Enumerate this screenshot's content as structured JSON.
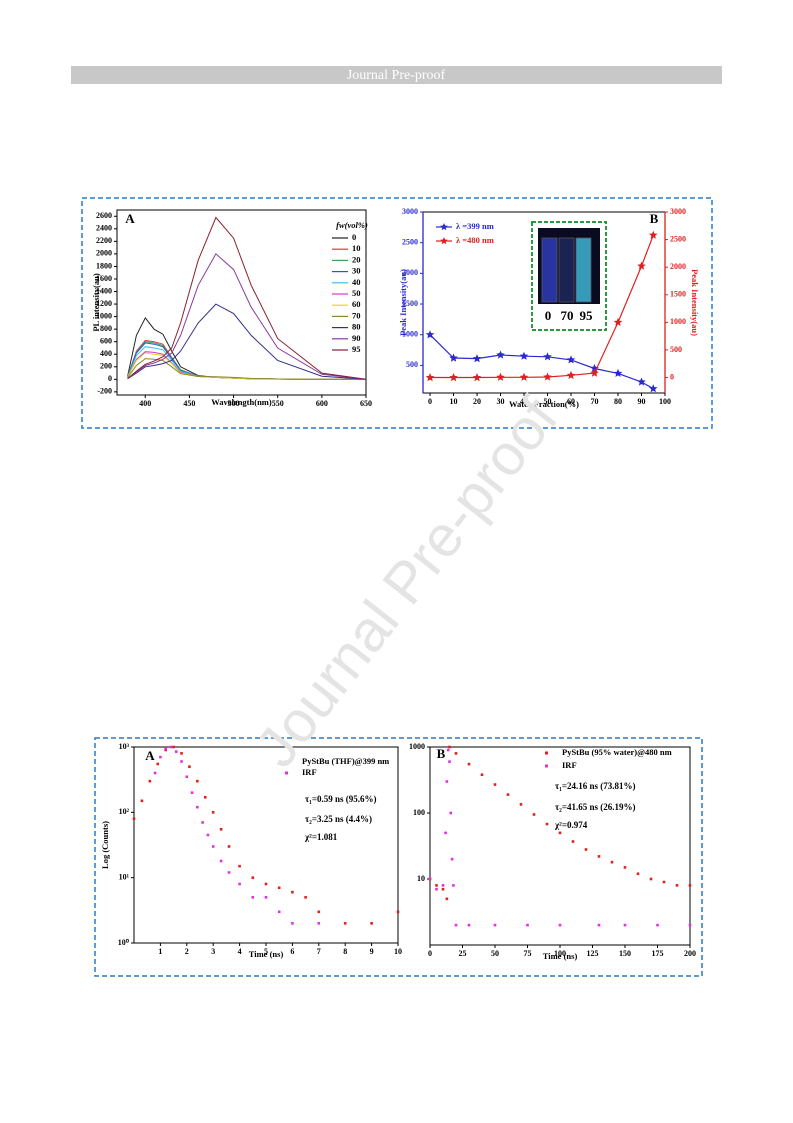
{
  "header": {
    "text": "Journal Pre-proof"
  },
  "watermark": "Journal Pre-proof",
  "chart_data": [
    {
      "type": "line",
      "annotations": [
        "A"
      ],
      "legend_title": "fw(vol%)",
      "legend": "right",
      "xlabel": "Wavelength(nm)",
      "ylabel": "PL intensity(au)",
      "x": [
        380,
        390,
        400,
        410,
        420,
        430,
        440,
        460,
        480,
        500,
        520,
        550,
        600,
        650
      ],
      "xlim": [
        368,
        650
      ],
      "xticks": [
        400,
        450,
        500,
        550,
        600,
        650
      ],
      "ylim": [
        -250,
        2700
      ],
      "yticks": [
        -200,
        0,
        200,
        400,
        600,
        800,
        1000,
        1200,
        1400,
        1600,
        1800,
        2000,
        2200,
        2400,
        2600
      ],
      "series": [
        {
          "name": "0",
          "color": "#222222",
          "values": [
            50,
            700,
            980,
            800,
            720,
            450,
            200,
            60,
            30,
            20,
            10,
            5,
            0,
            0
          ]
        },
        {
          "name": "10",
          "color": "#e8343a",
          "values": [
            40,
            450,
            620,
            600,
            560,
            350,
            150,
            50,
            30,
            20,
            10,
            5,
            0,
            0
          ]
        },
        {
          "name": "20",
          "color": "#2fa84f",
          "values": [
            40,
            430,
            600,
            580,
            540,
            340,
            150,
            50,
            30,
            20,
            10,
            5,
            0,
            0
          ]
        },
        {
          "name": "30",
          "color": "#3050d8",
          "values": [
            40,
            420,
            580,
            560,
            520,
            330,
            140,
            50,
            30,
            20,
            10,
            5,
            0,
            0
          ]
        },
        {
          "name": "40",
          "color": "#35c6e0",
          "values": [
            35,
            380,
            520,
            500,
            470,
            300,
            130,
            50,
            30,
            20,
            10,
            5,
            0,
            0
          ]
        },
        {
          "name": "50",
          "color": "#d838d0",
          "values": [
            30,
            320,
            440,
            430,
            400,
            260,
            110,
            45,
            30,
            20,
            10,
            5,
            0,
            0
          ]
        },
        {
          "name": "60",
          "color": "#e2d820",
          "values": [
            30,
            300,
            420,
            400,
            380,
            250,
            100,
            45,
            30,
            20,
            10,
            5,
            0,
            0
          ]
        },
        {
          "name": "70",
          "color": "#8a8a20",
          "values": [
            25,
            220,
            330,
            320,
            300,
            200,
            90,
            45,
            40,
            30,
            15,
            5,
            0,
            0
          ]
        },
        {
          "name": "80",
          "color": "#30308a",
          "values": [
            10,
            100,
            200,
            220,
            250,
            300,
            450,
            900,
            1200,
            1050,
            700,
            300,
            50,
            0
          ]
        },
        {
          "name": "90",
          "color": "#8a3aa0",
          "values": [
            10,
            120,
            220,
            260,
            320,
            420,
            700,
            1500,
            2000,
            1750,
            1150,
            500,
            80,
            0
          ]
        },
        {
          "name": "95",
          "color": "#8a2030",
          "values": [
            10,
            130,
            240,
            290,
            360,
            500,
            900,
            1900,
            2580,
            2250,
            1500,
            650,
            100,
            0
          ]
        }
      ]
    },
    {
      "type": "line",
      "annotations": [
        "B"
      ],
      "legend": "upper left",
      "markers": "star",
      "xlabel": "Water Fraction(%)",
      "ylabel": "Peak Intensity(au)",
      "y2label": "Peak Intensity(au)",
      "inset_labels": [
        "0",
        "70",
        "95"
      ],
      "x": [
        0,
        10,
        20,
        30,
        40,
        50,
        60,
        70,
        80,
        90,
        95
      ],
      "xlim": [
        -3,
        100
      ],
      "xticks": [
        0,
        10,
        20,
        30,
        40,
        50,
        60,
        70,
        80,
        90,
        100
      ],
      "ylim": [
        50,
        3000
      ],
      "yticks": [
        500,
        1000,
        1500,
        2000,
        2500,
        3000
      ],
      "y2lim": [
        -280,
        3000
      ],
      "y2ticks": [
        0,
        500,
        1000,
        1500,
        2000,
        2500,
        3000
      ],
      "series": [
        {
          "name": "λ =399 nm",
          "color": "#2a2ad0",
          "values": [
            1000,
            620,
            610,
            670,
            650,
            640,
            590,
            450,
            370,
            230,
            120
          ]
        },
        {
          "name": "λ =480 nm",
          "color": "#e02020",
          "axis": "y2",
          "values": [
            0,
            0,
            0,
            5,
            5,
            10,
            40,
            80,
            1000,
            2020,
            2580
          ]
        }
      ]
    },
    {
      "type": "scatter",
      "log_y": true,
      "legend": "upper right",
      "annotations": [
        "A",
        "τ₁=0.59 ns (95.6%)",
        "τ₂=3.25 ns (4.4%)",
        "χ²=1.081"
      ],
      "xlabel": "Time (ns)",
      "ylabel": "Log (Counts)",
      "xlim": [
        0,
        10
      ],
      "xticks": [
        1,
        2,
        3,
        4,
        5,
        6,
        7,
        8,
        9,
        10
      ],
      "ylim": [
        1,
        1000
      ],
      "yticks": [
        {
          "value": 1,
          "label": "10⁰"
        },
        {
          "value": 10,
          "label": "10¹"
        },
        {
          "value": 100,
          "label": "10²"
        },
        {
          "value": 1000,
          "label": "10³"
        }
      ],
      "series": [
        {
          "name": "PyStBu (THF)@399 nm",
          "color": "#e02020",
          "x": [
            0,
            0.3,
            0.6,
            0.9,
            1.2,
            1.5,
            1.8,
            2.1,
            2.4,
            2.7,
            3.0,
            3.3,
            3.6,
            4.0,
            4.5,
            5,
            5.5,
            6,
            6.5,
            7,
            8,
            9,
            10
          ],
          "values": [
            80,
            150,
            300,
            550,
            900,
            1000,
            800,
            500,
            300,
            170,
            100,
            55,
            30,
            15,
            10,
            8,
            7,
            6,
            5,
            3,
            2,
            2,
            3
          ]
        },
        {
          "name": "IRF",
          "color": "#e030e0",
          "x": [
            0.8,
            1.0,
            1.2,
            1.4,
            1.6,
            1.8,
            2.0,
            2.2,
            2.4,
            2.6,
            2.8,
            3.0,
            3.3,
            3.6,
            4,
            4.5,
            5,
            5.5,
            6,
            7
          ],
          "values": [
            400,
            700,
            950,
            1000,
            850,
            600,
            350,
            200,
            120,
            70,
            45,
            30,
            18,
            12,
            8,
            5,
            5,
            3,
            2,
            2
          ]
        }
      ]
    },
    {
      "type": "scatter",
      "log_y": true,
      "legend": "upper right",
      "annotations": [
        "B",
        "τ₁=24.16 ns (73.81%)",
        "τ₂=41.65 ns (26.19%)",
        "χ²=0.974"
      ],
      "xlabel": "Time (ns)",
      "xlim": [
        0,
        200
      ],
      "xticks": [
        0,
        25,
        50,
        75,
        100,
        125,
        150,
        175,
        200
      ],
      "ylim": [
        1,
        1000
      ],
      "yticks": [
        10,
        100,
        1000
      ],
      "series": [
        {
          "name": "PyStBu (95% water)@480 nm",
          "color": "#e02020",
          "x": [
            0,
            5,
            10,
            13,
            15,
            20,
            30,
            40,
            50,
            60,
            70,
            80,
            90,
            100,
            110,
            120,
            130,
            140,
            150,
            160,
            170,
            180,
            190,
            200
          ],
          "values": [
            10,
            8,
            7,
            5,
            1000,
            800,
            550,
            380,
            270,
            190,
            135,
            95,
            68,
            50,
            37,
            28,
            22,
            18,
            15,
            12,
            10,
            9,
            8,
            8
          ]
        },
        {
          "name": "IRF",
          "color": "#e030e0",
          "x": [
            0,
            5,
            10,
            12,
            13,
            14,
            15,
            16,
            17,
            18,
            20,
            30,
            50,
            75,
            100,
            130,
            150,
            175,
            200
          ],
          "values": [
            10,
            7,
            8,
            50,
            300,
            900,
            600,
            100,
            20,
            8,
            2,
            2,
            2,
            2,
            2,
            2,
            2,
            2,
            2
          ]
        }
      ]
    }
  ]
}
